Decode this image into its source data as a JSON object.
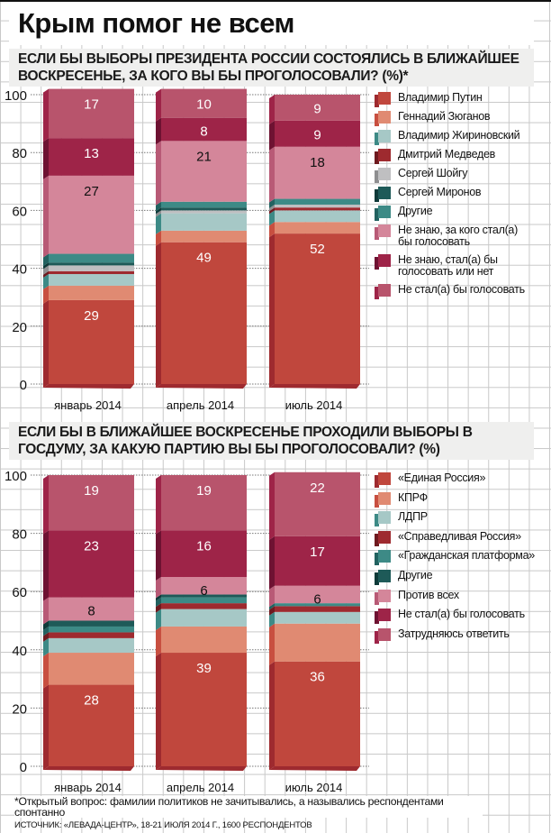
{
  "title": "Крым помог не всем",
  "colors": {
    "background_grid": "#c8c8c8",
    "question_bg": "#efefee"
  },
  "chart_data": [
    {
      "type": "bar",
      "stacked": true,
      "title": "ЕСЛИ БЫ ВЫБОРЫ ПРЕЗИДЕНТА РОССИИ СОСТОЯЛИСЬ В БЛИЖАЙШЕЕ ВОСКРЕСЕНЬЕ, ЗА КОГО ВЫ БЫ ПРОГОЛОСОВАЛИ? (%)*",
      "xlabel": "",
      "ylabel": "",
      "ylim": [
        0,
        100
      ],
      "yticks": [
        "0",
        "20",
        "40",
        "60",
        "80",
        "100"
      ],
      "grid": true,
      "legend_position": "right",
      "categories": [
        "январь 2014",
        "апрель 2014",
        "июль 2014"
      ],
      "series": [
        {
          "name": "Владимир Путин",
          "color": "#c0473d",
          "dark": "#9e2a2f",
          "values": [
            29,
            49,
            52
          ],
          "labels": [
            "29",
            "49",
            "52"
          ],
          "label_color": "#ffffff"
        },
        {
          "name": "Геннадий Зюганов",
          "color": "#e08a72",
          "dark": "#c84f40",
          "values": [
            5,
            4,
            4
          ],
          "labels": [
            "",
            "",
            ""
          ]
        },
        {
          "name": "Владимир Жириновский",
          "color": "#a6c8c6",
          "dark": "#3d8a86",
          "values": [
            4,
            6,
            4
          ],
          "labels": [
            "",
            "",
            ""
          ]
        },
        {
          "name": "Дмитрий Медведев",
          "color": "#9e2a2f",
          "dark": "#6e1a1f",
          "values": [
            1,
            0,
            1
          ],
          "labels": [
            "",
            "",
            ""
          ]
        },
        {
          "name": "Сергей Шойгу",
          "color": "#bfbfc1",
          "dark": "#8e8e90",
          "values": [
            2,
            1,
            1
          ],
          "labels": [
            "",
            "",
            ""
          ]
        },
        {
          "name": "Сергей Миронов",
          "color": "#1e5a58",
          "dark": "#0f3a39",
          "values": [
            1,
            1,
            0
          ],
          "labels": [
            "",
            "",
            ""
          ]
        },
        {
          "name": "Другие",
          "color": "#3d8a86",
          "dark": "#226260",
          "values": [
            3,
            2,
            2
          ],
          "labels": [
            "",
            "",
            ""
          ]
        },
        {
          "name": "Не знаю, за кого стал(а) бы голосовать",
          "color": "#d4869a",
          "dark": "#b85a76",
          "values": [
            27,
            21,
            18
          ],
          "labels": [
            "27",
            "21",
            "18"
          ],
          "label_color": "#111111"
        },
        {
          "name": "Не знаю, стал(а) бы голосовать или нет",
          "color": "#9e2448",
          "dark": "#6e1232",
          "values": [
            13,
            8,
            9
          ],
          "labels": [
            "13",
            "8",
            "9"
          ],
          "label_color": "#ffffff"
        },
        {
          "name": "Не стал(а) бы голосовать",
          "color": "#b8546c",
          "dark": "#9e2448",
          "values": [
            17,
            10,
            9
          ],
          "labels": [
            "17",
            "10",
            "9"
          ],
          "label_color": "#ffffff"
        }
      ]
    },
    {
      "type": "bar",
      "stacked": true,
      "title": "ЕСЛИ БЫ В БЛИЖАЙШЕЕ ВОСКРЕСЕНЬЕ ПРОХОДИЛИ ВЫБОРЫ В ГОСДУМУ, ЗА КАКУЮ ПАРТИЮ ВЫ БЫ ПРОГОЛОСОВАЛИ? (%)",
      "xlabel": "",
      "ylabel": "",
      "ylim": [
        0,
        100
      ],
      "yticks": [
        "0",
        "20",
        "40",
        "60",
        "80",
        "100"
      ],
      "grid": true,
      "legend_position": "right",
      "categories": [
        "январь 2014",
        "апрель 2014",
        "июль 2014"
      ],
      "series": [
        {
          "name": "«Единая Россия»",
          "color": "#c0473d",
          "dark": "#9e2a2f",
          "values": [
            28,
            39,
            36
          ],
          "labels": [
            "28",
            "39",
            "36"
          ],
          "label_color": "#ffffff"
        },
        {
          "name": "КПРФ",
          "color": "#e08a72",
          "dark": "#c84f40",
          "values": [
            11,
            9,
            13
          ],
          "labels": [
            "",
            "",
            ""
          ]
        },
        {
          "name": "ЛДПР",
          "color": "#a6c8c6",
          "dark": "#3d8a86",
          "values": [
            5,
            6,
            4
          ],
          "labels": [
            "",
            "",
            ""
          ]
        },
        {
          "name": "«Справедливая Россия»",
          "color": "#9e2a2f",
          "dark": "#6e1a1f",
          "values": [
            2,
            2,
            2
          ],
          "labels": [
            "",
            "",
            ""
          ]
        },
        {
          "name": "«Гражданская платформа»",
          "color": "#3d8a86",
          "dark": "#226260",
          "values": [
            2,
            2,
            1
          ],
          "labels": [
            "",
            "",
            ""
          ]
        },
        {
          "name": "Другие",
          "color": "#1e5a58",
          "dark": "#0f3a39",
          "values": [
            2,
            1,
            0
          ],
          "labels": [
            "",
            "",
            ""
          ]
        },
        {
          "name": "Против всех",
          "color": "#d4869a",
          "dark": "#b85a76",
          "values": [
            8,
            6,
            6
          ],
          "labels": [
            "8",
            "6",
            "6"
          ],
          "label_color": "#111111"
        },
        {
          "name": "Не стал(а) бы голосовать",
          "color": "#9e2448",
          "dark": "#6e1232",
          "values": [
            23,
            16,
            17
          ],
          "labels": [
            "23",
            "16",
            "17"
          ],
          "label_color": "#ffffff"
        },
        {
          "name": "Затрудняюсь ответить",
          "color": "#b8546c",
          "dark": "#9e2448",
          "values": [
            19,
            19,
            22
          ],
          "labels": [
            "19",
            "19",
            "22"
          ],
          "label_color": "#ffffff"
        }
      ]
    }
  ],
  "footnote": "*Открытый вопрос: фамилии политиков не зачитывались, а назывались респондентами спонтанно",
  "source": "ИСТОЧНИК: «ЛЕВАДА-ЦЕНТР», 18-21 ИЮЛЯ 2014 Г., 1600 РЕСПОНДЕНТОВ"
}
